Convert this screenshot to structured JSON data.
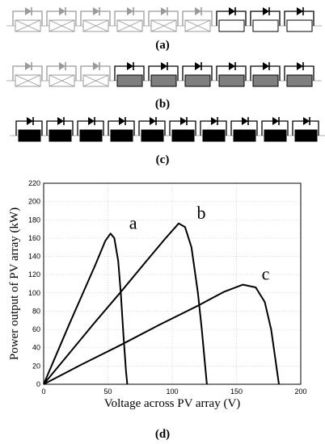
{
  "panels": {
    "a": {
      "label": "(a)",
      "modules": [
        "shaded",
        "shaded",
        "shaded",
        "shaded",
        "shaded",
        "shaded",
        "unshaded",
        "unshaded",
        "unshaded"
      ]
    },
    "b": {
      "label": "(b)",
      "modules": [
        "shaded",
        "shaded",
        "shaded",
        "partial",
        "partial",
        "partial",
        "partial",
        "partial",
        "partial"
      ]
    },
    "c": {
      "label": "(c)",
      "modules": [
        "full",
        "full",
        "full",
        "full",
        "full",
        "full",
        "full",
        "full",
        "full",
        "full"
      ]
    },
    "d": {
      "label": "(d)"
    }
  },
  "colors": {
    "shaded_line": "#9a9a9a",
    "partial_fill": "#7f7f7f",
    "full_fill": "#000000",
    "unshaded_fill": "#ffffff"
  },
  "chart_data": {
    "type": "line",
    "xlabel": "Voltage across PV array (V)",
    "ylabel": "Power output of PV array (kW)",
    "xlim": [
      0,
      200
    ],
    "ylim": [
      0,
      220
    ],
    "xticks": [
      0,
      50,
      100,
      150,
      200
    ],
    "yticks": [
      0,
      20,
      40,
      60,
      80,
      100,
      120,
      140,
      160,
      180,
      200,
      220
    ],
    "grid": true,
    "series": [
      {
        "name": "a",
        "x": [
          0,
          10,
          20,
          30,
          40,
          48,
          52,
          55,
          58,
          60,
          62,
          64,
          65
        ],
        "y": [
          0,
          33,
          66,
          98,
          130,
          157,
          165,
          160,
          135,
          100,
          55,
          15,
          0
        ]
      },
      {
        "name": "b",
        "x": [
          0,
          20,
          40,
          60,
          80,
          95,
          105,
          110,
          115,
          120,
          123,
          126,
          127
        ],
        "y": [
          0,
          34,
          68,
          101,
          135,
          160,
          176,
          172,
          150,
          100,
          60,
          15,
          0
        ]
      },
      {
        "name": "c",
        "x": [
          0,
          30,
          60,
          90,
          120,
          140,
          155,
          165,
          172,
          177,
          180,
          183
        ],
        "y": [
          0,
          22,
          43,
          65,
          86,
          101,
          109,
          106,
          90,
          60,
          30,
          0
        ]
      }
    ]
  }
}
